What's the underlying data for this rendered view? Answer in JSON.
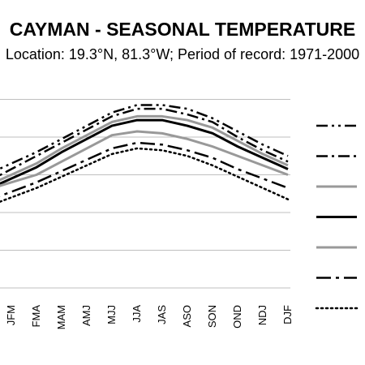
{
  "chart": {
    "title": "CAYMAN - SEASONAL TEMPERATURE",
    "subtitle": "Location: 19.3°N, 81.3°W; Period of record: 1971-2000"
  },
  "chart_data": {
    "type": "line",
    "title": "CAYMAN - SEASONAL TEMPERATURE",
    "subtitle": "Location: 19.3°N, 81.3°W; Period of record: 1971-2000",
    "categories": [
      "JFM",
      "FMA",
      "MAM",
      "AMJ",
      "MJJ",
      "JJA",
      "JAS",
      "ASO",
      "SON",
      "OND",
      "NDJ",
      "DJF"
    ],
    "grid": true,
    "legend_position": "right",
    "series": [
      {
        "values": [
          6.6,
          7.2,
          7.9,
          8.6,
          9.3,
          9.7,
          9.7,
          9.5,
          9.0,
          8.3,
          7.6,
          7.0
        ],
        "color": "#000000",
        "style": "dashdotdot",
        "width": 2.5
      },
      {
        "values": [
          6.3,
          7.0,
          7.7,
          8.4,
          9.1,
          9.5,
          9.5,
          9.2,
          8.8,
          8.0,
          7.3,
          6.7
        ],
        "color": "#000000",
        "style": "dashdot",
        "width": 2.5
      },
      {
        "values": [
          6.0,
          6.6,
          7.4,
          8.1,
          8.8,
          9.1,
          9.1,
          8.9,
          8.5,
          7.8,
          7.1,
          6.5
        ],
        "color": "#999999",
        "style": "solid",
        "width": 3
      },
      {
        "values": [
          5.8,
          6.4,
          7.2,
          7.9,
          8.6,
          8.9,
          8.9,
          8.6,
          8.2,
          7.5,
          6.9,
          6.3
        ],
        "color": "#000000",
        "style": "solid",
        "width": 3
      },
      {
        "values": [
          5.6,
          6.0,
          6.7,
          7.4,
          8.1,
          8.3,
          8.2,
          7.9,
          7.5,
          7.0,
          6.5,
          6.0
        ],
        "color": "#999999",
        "style": "solid",
        "width": 3
      },
      {
        "values": [
          5.1,
          5.6,
          6.2,
          6.8,
          7.4,
          7.7,
          7.6,
          7.3,
          6.9,
          6.3,
          5.8,
          5.3
        ],
        "color": "#000000",
        "style": "longdashdot",
        "width": 2.5
      },
      {
        "values": [
          4.8,
          5.3,
          5.9,
          6.5,
          7.1,
          7.4,
          7.3,
          7.0,
          6.5,
          5.9,
          5.3,
          4.7
        ],
        "color": "#000000",
        "style": "dotted",
        "width": 2.5
      }
    ],
    "y_range": [
      0,
      11
    ],
    "y_gridlines": [
      0,
      2,
      4,
      6,
      8,
      10
    ]
  }
}
